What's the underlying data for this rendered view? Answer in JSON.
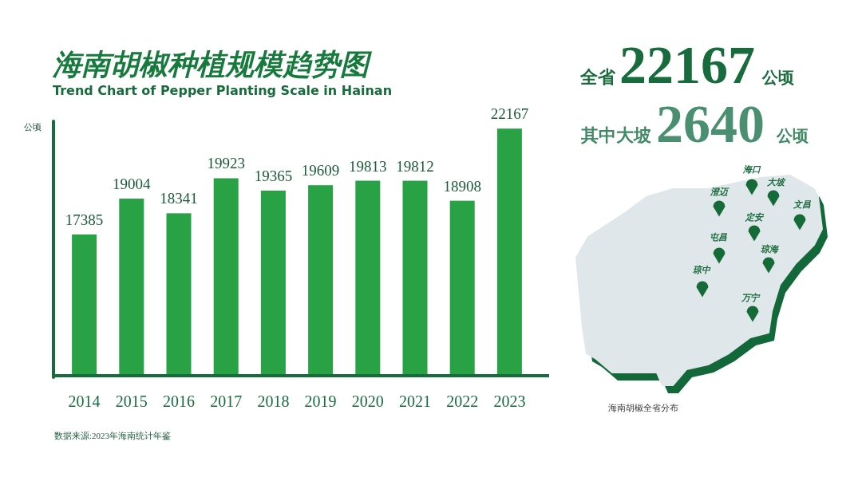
{
  "chart_data": {
    "type": "bar",
    "title": "海南胡椒种植规模趋势图",
    "subtitle": "Trend Chart of Pepper Planting Scale in Hainan",
    "ylabel": "公顷",
    "categories": [
      "2014",
      "2015",
      "2016",
      "2017",
      "2018",
      "2019",
      "2020",
      "2021",
      "2022",
      "2023"
    ],
    "values": [
      17385,
      19004,
      18341,
      19923,
      19365,
      19609,
      19813,
      19812,
      18908,
      22167
    ],
    "color": "#28a245",
    "ylim": [
      11000,
      22500
    ],
    "data_labels": true,
    "tick_labels": "x",
    "annotations": [
      "全省",
      "22167",
      "公顷",
      "其中大坡",
      "2640",
      "公顷",
      "海口",
      "大坡",
      "澄迈",
      "文昌",
      "定安",
      "屯昌",
      "琼海",
      "琼中",
      "万宁",
      "海南胡椒全省分布",
      "数据来源:2023年海南统计年鉴"
    ]
  }
}
